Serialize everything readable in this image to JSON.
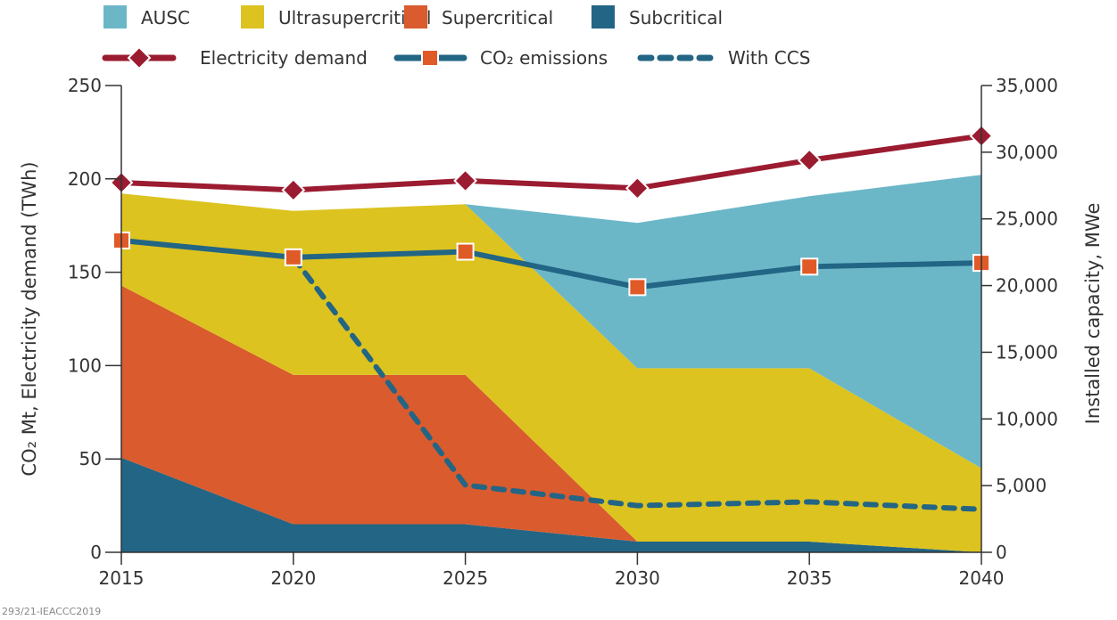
{
  "chart_data": {
    "type": "area",
    "x": [
      2015,
      2020,
      2025,
      2030,
      2035,
      2040
    ],
    "xticks": [
      "2015",
      "2020",
      "2025",
      "2030",
      "2035",
      "2040"
    ],
    "ylabel": "CO₂ Mt, Electricity demand (TWh)",
    "y2label": "Installed capacity, MWe",
    "ylim": [
      0,
      250
    ],
    "y2lim": [
      0,
      35000
    ],
    "yticks": [
      "0",
      "50",
      "100",
      "150",
      "200",
      "250"
    ],
    "y2ticks": [
      "0",
      "5,000",
      "10,000",
      "15,000",
      "20,000",
      "25,000",
      "30,000",
      "35,000"
    ],
    "stacked_areas_right_axis": [
      {
        "name": "Subcritical",
        "color": "#236584",
        "values": [
          7100,
          2100,
          2100,
          800,
          800,
          0
        ]
      },
      {
        "name": "Supercritical",
        "color": "#d95b2e",
        "values": [
          12900,
          11200,
          11200,
          0,
          0,
          0
        ]
      },
      {
        "name": "Ultrasupercritical",
        "color": "#dcc320",
        "values": [
          6900,
          12300,
          12800,
          13000,
          13000,
          6300
        ]
      },
      {
        "name": "AUSC",
        "color": "#6bb7c8",
        "values": [
          0,
          0,
          0,
          10900,
          12900,
          22000
        ]
      }
    ],
    "lines_left_axis": [
      {
        "name": "Electricity demand",
        "color": "#9b1b30",
        "marker": "diamond",
        "values": [
          198,
          194,
          199,
          195,
          210,
          223
        ]
      },
      {
        "name": "CO₂ emissions",
        "color": "#236584",
        "marker": "square",
        "marker_color": "#e05a28",
        "values": [
          167,
          158,
          161,
          142,
          153,
          155
        ]
      },
      {
        "name": "With CCS",
        "color": "#236584",
        "style": "dashed",
        "x": [
          2020,
          2025,
          2030,
          2035,
          2040
        ],
        "values": [
          158,
          36,
          25,
          27,
          23
        ]
      }
    ],
    "legend": {
      "row1": [
        "AUSC",
        "Ultrasupercritical",
        "Supercritical",
        "Subcritical"
      ],
      "row2": [
        "Electricity demand",
        "CO₂ emissions",
        "With CCS"
      ],
      "placement": "top"
    }
  },
  "footer": "293/21-IEACCC2019"
}
